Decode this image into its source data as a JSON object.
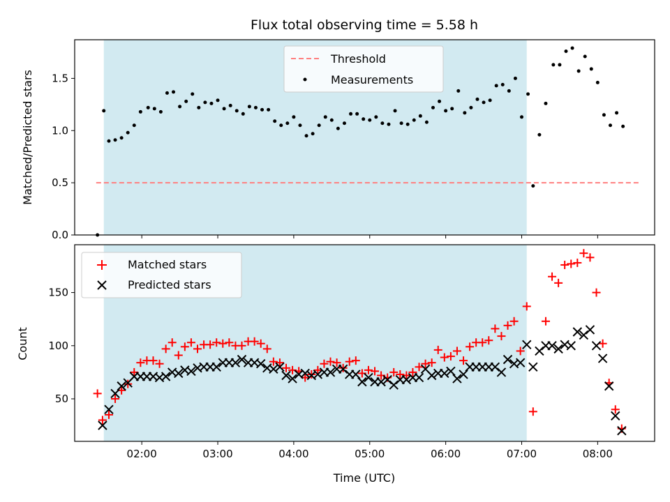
{
  "chart_data": [
    {
      "type": "scatter",
      "title": "Flux total observing time = 5.58 h",
      "xlabel": "",
      "ylabel": "Matched/Predicted stars",
      "xlim": [
        "01:07",
        "08:45"
      ],
      "ylim": [
        0,
        1.87
      ],
      "yticks": [
        0.0,
        0.5,
        1.0,
        1.5
      ],
      "yticklabels": [
        "0.0",
        "0.5",
        "1.0",
        "1.5"
      ],
      "legend_position": "top-center",
      "shaded_interval": {
        "start": "01:30",
        "end": "07:04",
        "color": "#add8e6"
      },
      "threshold_line": {
        "name": "Threshold",
        "value": 0.5,
        "x_start": "01:24",
        "x_end": "08:33",
        "color": "#ff7f7f",
        "style": "dashed"
      },
      "series": [
        {
          "name": "Measurements",
          "marker": "dot",
          "color": "#000000",
          "points": [
            [
              "01:25",
              0.0
            ],
            [
              "01:30",
              1.19
            ],
            [
              "01:34",
              0.9
            ],
            [
              "01:39",
              0.91
            ],
            [
              "01:44",
              0.93
            ],
            [
              "01:49",
              0.98
            ],
            [
              "01:54",
              1.05
            ],
            [
              "01:59",
              1.18
            ],
            [
              "02:05",
              1.22
            ],
            [
              "02:10",
              1.21
            ],
            [
              "02:15",
              1.18
            ],
            [
              "02:20",
              1.36
            ],
            [
              "02:25",
              1.37
            ],
            [
              "02:30",
              1.23
            ],
            [
              "02:35",
              1.28
            ],
            [
              "02:40",
              1.35
            ],
            [
              "02:45",
              1.22
            ],
            [
              "02:50",
              1.27
            ],
            [
              "02:55",
              1.26
            ],
            [
              "03:00",
              1.29
            ],
            [
              "03:05",
              1.21
            ],
            [
              "03:10",
              1.24
            ],
            [
              "03:15",
              1.19
            ],
            [
              "03:20",
              1.16
            ],
            [
              "03:25",
              1.23
            ],
            [
              "03:30",
              1.22
            ],
            [
              "03:35",
              1.2
            ],
            [
              "03:40",
              1.2
            ],
            [
              "03:45",
              1.09
            ],
            [
              "03:50",
              1.05
            ],
            [
              "03:55",
              1.07
            ],
            [
              "04:00",
              1.13
            ],
            [
              "04:05",
              1.05
            ],
            [
              "04:10",
              0.95
            ],
            [
              "04:15",
              0.97
            ],
            [
              "04:20",
              1.05
            ],
            [
              "04:25",
              1.13
            ],
            [
              "04:30",
              1.1
            ],
            [
              "04:35",
              1.02
            ],
            [
              "04:40",
              1.07
            ],
            [
              "04:45",
              1.16
            ],
            [
              "04:50",
              1.16
            ],
            [
              "04:55",
              1.11
            ],
            [
              "05:00",
              1.1
            ],
            [
              "05:05",
              1.13
            ],
            [
              "05:10",
              1.07
            ],
            [
              "05:15",
              1.06
            ],
            [
              "05:20",
              1.19
            ],
            [
              "05:25",
              1.07
            ],
            [
              "05:30",
              1.06
            ],
            [
              "05:35",
              1.1
            ],
            [
              "05:40",
              1.14
            ],
            [
              "05:45",
              1.08
            ],
            [
              "05:50",
              1.22
            ],
            [
              "05:55",
              1.28
            ],
            [
              "06:00",
              1.19
            ],
            [
              "06:05",
              1.21
            ],
            [
              "06:10",
              1.38
            ],
            [
              "06:15",
              1.17
            ],
            [
              "06:20",
              1.22
            ],
            [
              "06:25",
              1.3
            ],
            [
              "06:30",
              1.27
            ],
            [
              "06:35",
              1.29
            ],
            [
              "06:40",
              1.43
            ],
            [
              "06:45",
              1.44
            ],
            [
              "06:50",
              1.38
            ],
            [
              "06:55",
              1.5
            ],
            [
              "07:00",
              1.13
            ],
            [
              "07:05",
              1.35
            ],
            [
              "07:09",
              0.47
            ],
            [
              "07:14",
              0.96
            ],
            [
              "07:19",
              1.26
            ],
            [
              "07:25",
              1.63
            ],
            [
              "07:30",
              1.63
            ],
            [
              "07:35",
              1.76
            ],
            [
              "07:40",
              1.79
            ],
            [
              "07:45",
              1.57
            ],
            [
              "07:50",
              1.71
            ],
            [
              "07:55",
              1.59
            ],
            [
              "08:00",
              1.46
            ],
            [
              "08:05",
              1.15
            ],
            [
              "08:10",
              1.05
            ],
            [
              "08:15",
              1.17
            ],
            [
              "08:20",
              1.04
            ]
          ]
        }
      ]
    },
    {
      "type": "scatter",
      "title": "",
      "xlabel": "Time (UTC)",
      "ylabel": "Count",
      "xlim": [
        "01:07",
        "08:45"
      ],
      "ylim": [
        10,
        195
      ],
      "yticks": [
        50,
        100,
        150
      ],
      "yticklabels": [
        "50",
        "100",
        "150"
      ],
      "xticks": [
        "02:00",
        "03:00",
        "04:00",
        "05:00",
        "06:00",
        "07:00",
        "08:00"
      ],
      "legend_position": "top-left",
      "shaded_interval": {
        "start": "01:30",
        "end": "07:04",
        "color": "#add8e6"
      },
      "series": [
        {
          "name": "Matched stars",
          "marker": "plus",
          "color": "#ff0000",
          "points": [
            [
              "01:25",
              55
            ],
            [
              "01:29",
              30
            ],
            [
              "01:34",
              35
            ],
            [
              "01:39",
              50
            ],
            [
              "01:44",
              58
            ],
            [
              "01:49",
              64
            ],
            [
              "01:54",
              75
            ],
            [
              "01:59",
              84
            ],
            [
              "02:04",
              86
            ],
            [
              "02:09",
              86
            ],
            [
              "02:14",
              83
            ],
            [
              "02:19",
              97
            ],
            [
              "02:24",
              103
            ],
            [
              "02:29",
              91
            ],
            [
              "02:34",
              99
            ],
            [
              "02:39",
              103
            ],
            [
              "02:44",
              97
            ],
            [
              "02:49",
              101
            ],
            [
              "02:54",
              101
            ],
            [
              "02:59",
              103
            ],
            [
              "03:04",
              102
            ],
            [
              "03:09",
              103
            ],
            [
              "03:14",
              100
            ],
            [
              "03:19",
              100
            ],
            [
              "03:24",
              104
            ],
            [
              "03:29",
              104
            ],
            [
              "03:34",
              102
            ],
            [
              "03:39",
              97
            ],
            [
              "03:44",
              85
            ],
            [
              "03:49",
              84
            ],
            [
              "03:54",
              79
            ],
            [
              "03:59",
              77
            ],
            [
              "04:04",
              76
            ],
            [
              "04:09",
              70
            ],
            [
              "04:14",
              73
            ],
            [
              "04:19",
              77
            ],
            [
              "04:24",
              83
            ],
            [
              "04:29",
              85
            ],
            [
              "04:34",
              84
            ],
            [
              "04:39",
              79
            ],
            [
              "04:44",
              85
            ],
            [
              "04:49",
              86
            ],
            [
              "04:54",
              74
            ],
            [
              "04:59",
              77
            ],
            [
              "05:04",
              76
            ],
            [
              "05:09",
              72
            ],
            [
              "05:14",
              70
            ],
            [
              "05:19",
              75
            ],
            [
              "05:24",
              73
            ],
            [
              "05:29",
              72
            ],
            [
              "05:34",
              75
            ],
            [
              "05:39",
              80
            ],
            [
              "05:44",
              83
            ],
            [
              "05:49",
              84
            ],
            [
              "05:54",
              96
            ],
            [
              "05:59",
              89
            ],
            [
              "06:04",
              90
            ],
            [
              "06:09",
              95
            ],
            [
              "06:14",
              86
            ],
            [
              "06:19",
              99
            ],
            [
              "06:24",
              103
            ],
            [
              "06:29",
              103
            ],
            [
              "06:34",
              105
            ],
            [
              "06:39",
              116
            ],
            [
              "06:44",
              109
            ],
            [
              "06:49",
              119
            ],
            [
              "06:54",
              123
            ],
            [
              "06:59",
              95
            ],
            [
              "07:04",
              137
            ],
            [
              "07:09",
              38
            ],
            [
              "07:19",
              123
            ],
            [
              "07:24",
              165
            ],
            [
              "07:29",
              159
            ],
            [
              "07:34",
              176
            ],
            [
              "07:39",
              177
            ],
            [
              "07:44",
              178
            ],
            [
              "07:49",
              187
            ],
            [
              "07:54",
              183
            ],
            [
              "07:59",
              150
            ],
            [
              "08:04",
              102
            ],
            [
              "08:09",
              65
            ],
            [
              "08:14",
              40
            ],
            [
              "08:19",
              22
            ]
          ]
        },
        {
          "name": "Predicted stars",
          "marker": "x",
          "color": "#000000",
          "points": [
            [
              "01:29",
              25
            ],
            [
              "01:34",
              40
            ],
            [
              "01:39",
              55
            ],
            [
              "01:44",
              62
            ],
            [
              "01:49",
              65
            ],
            [
              "01:54",
              71
            ],
            [
              "01:59",
              71
            ],
            [
              "02:04",
              71
            ],
            [
              "02:09",
              71
            ],
            [
              "02:14",
              70
            ],
            [
              "02:19",
              71
            ],
            [
              "02:24",
              75
            ],
            [
              "02:29",
              74
            ],
            [
              "02:34",
              77
            ],
            [
              "02:39",
              76
            ],
            [
              "02:44",
              79
            ],
            [
              "02:49",
              80
            ],
            [
              "02:54",
              80
            ],
            [
              "02:59",
              80
            ],
            [
              "03:04",
              84
            ],
            [
              "03:09",
              84
            ],
            [
              "03:14",
              84
            ],
            [
              "03:19",
              87
            ],
            [
              "03:24",
              84
            ],
            [
              "03:29",
              84
            ],
            [
              "03:34",
              83
            ],
            [
              "03:39",
              79
            ],
            [
              "03:44",
              78
            ],
            [
              "03:49",
              80
            ],
            [
              "03:54",
              72
            ],
            [
              "03:59",
              69
            ],
            [
              "04:04",
              73
            ],
            [
              "04:09",
              74
            ],
            [
              "04:14",
              72
            ],
            [
              "04:19",
              73
            ],
            [
              "04:24",
              75
            ],
            [
              "04:29",
              75
            ],
            [
              "04:34",
              78
            ],
            [
              "04:39",
              78
            ],
            [
              "04:44",
              73
            ],
            [
              "04:49",
              73
            ],
            [
              "04:54",
              66
            ],
            [
              "04:59",
              70
            ],
            [
              "05:04",
              66
            ],
            [
              "05:09",
              66
            ],
            [
              "05:14",
              68
            ],
            [
              "05:19",
              63
            ],
            [
              "05:24",
              68
            ],
            [
              "05:29",
              68
            ],
            [
              "05:34",
              70
            ],
            [
              "05:39",
              70
            ],
            [
              "05:44",
              78
            ],
            [
              "05:49",
              72
            ],
            [
              "05:54",
              74
            ],
            [
              "05:59",
              74
            ],
            [
              "06:04",
              76
            ],
            [
              "06:09",
              69
            ],
            [
              "06:14",
              73
            ],
            [
              "06:19",
              80
            ],
            [
              "06:24",
              80
            ],
            [
              "06:29",
              80
            ],
            [
              "06:34",
              80
            ],
            [
              "06:39",
              80
            ],
            [
              "06:44",
              75
            ],
            [
              "06:49",
              87
            ],
            [
              "06:54",
              83
            ],
            [
              "06:59",
              84
            ],
            [
              "07:04",
              101
            ],
            [
              "07:09",
              80
            ],
            [
              "07:14",
              95
            ],
            [
              "07:19",
              100
            ],
            [
              "07:24",
              100
            ],
            [
              "07:29",
              97
            ],
            [
              "07:34",
              101
            ],
            [
              "07:39",
              100
            ],
            [
              "07:44",
              113
            ],
            [
              "07:49",
              110
            ],
            [
              "07:54",
              115
            ],
            [
              "07:59",
              100
            ],
            [
              "08:04",
              88
            ],
            [
              "08:09",
              62
            ],
            [
              "08:14",
              34
            ],
            [
              "08:19",
              20
            ]
          ]
        }
      ]
    }
  ]
}
